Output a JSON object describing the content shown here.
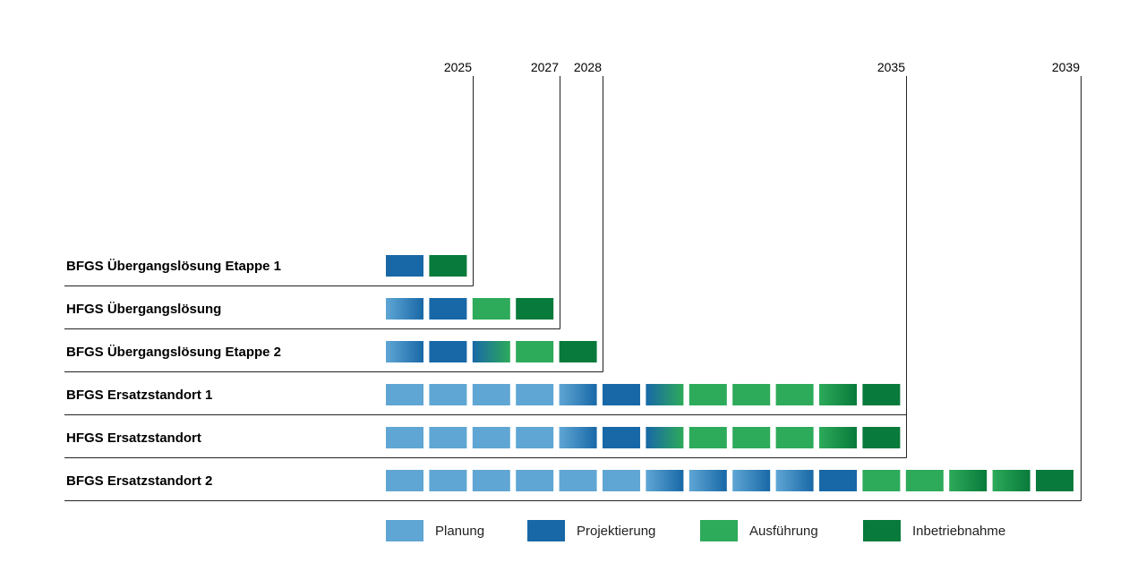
{
  "chart_data": {
    "type": "gantt",
    "colors": {
      "planung": "#5fa6d4",
      "projektierung": "#1868a7",
      "ausfuehrung": "#2daa5a",
      "inbetriebnahme": "#087a3b"
    },
    "years": [
      "2025",
      "2027",
      "2028",
      "2035",
      "2039"
    ],
    "rows": [
      {
        "label": "BFGS Übergangslösung Etappe 1",
        "end_year": "2025",
        "blocks": [
          [
            "projektierung",
            "projektierung"
          ],
          [
            "inbetriebnahme",
            "inbetriebnahme"
          ]
        ]
      },
      {
        "label": "HFGS Übergangslösung",
        "end_year": "2027",
        "blocks": [
          [
            "planung",
            "projektierung"
          ],
          [
            "projektierung",
            "projektierung"
          ],
          [
            "ausfuehrung",
            "ausfuehrung"
          ],
          [
            "inbetriebnahme",
            "inbetriebnahme"
          ]
        ]
      },
      {
        "label": "BFGS Übergangslösung Etappe 2",
        "end_year": "2028",
        "blocks": [
          [
            "planung",
            "projektierung"
          ],
          [
            "projektierung",
            "projektierung"
          ],
          [
            "projektierung",
            "ausfuehrung"
          ],
          [
            "ausfuehrung",
            "ausfuehrung"
          ],
          [
            "inbetriebnahme",
            "inbetriebnahme"
          ]
        ]
      },
      {
        "label": "BFGS Ersatzstandort 1",
        "end_year": "2035",
        "blocks": [
          [
            "planung",
            "planung"
          ],
          [
            "planung",
            "planung"
          ],
          [
            "planung",
            "planung"
          ],
          [
            "planung",
            "planung"
          ],
          [
            "planung",
            "projektierung"
          ],
          [
            "projektierung",
            "projektierung"
          ],
          [
            "projektierung",
            "ausfuehrung"
          ],
          [
            "ausfuehrung",
            "ausfuehrung"
          ],
          [
            "ausfuehrung",
            "ausfuehrung"
          ],
          [
            "ausfuehrung",
            "ausfuehrung"
          ],
          [
            "ausfuehrung",
            "inbetriebnahme"
          ],
          [
            "inbetriebnahme",
            "inbetriebnahme"
          ]
        ]
      },
      {
        "label": "HFGS Ersatzstandort",
        "end_year": "2035",
        "blocks": [
          [
            "planung",
            "planung"
          ],
          [
            "planung",
            "planung"
          ],
          [
            "planung",
            "planung"
          ],
          [
            "planung",
            "planung"
          ],
          [
            "planung",
            "projektierung"
          ],
          [
            "projektierung",
            "projektierung"
          ],
          [
            "projektierung",
            "ausfuehrung"
          ],
          [
            "ausfuehrung",
            "ausfuehrung"
          ],
          [
            "ausfuehrung",
            "ausfuehrung"
          ],
          [
            "ausfuehrung",
            "ausfuehrung"
          ],
          [
            "ausfuehrung",
            "inbetriebnahme"
          ],
          [
            "inbetriebnahme",
            "inbetriebnahme"
          ]
        ]
      },
      {
        "label": "BFGS Ersatzstandort 2",
        "end_year": "2039",
        "blocks": [
          [
            "planung",
            "planung"
          ],
          [
            "planung",
            "planung"
          ],
          [
            "planung",
            "planung"
          ],
          [
            "planung",
            "planung"
          ],
          [
            "planung",
            "planung"
          ],
          [
            "planung",
            "planung"
          ],
          [
            "planung",
            "projektierung"
          ],
          [
            "planung",
            "projektierung"
          ],
          [
            "planung",
            "projektierung"
          ],
          [
            "planung",
            "projektierung"
          ],
          [
            "projektierung",
            "projektierung"
          ],
          [
            "ausfuehrung",
            "ausfuehrung"
          ],
          [
            "ausfuehrung",
            "ausfuehrung"
          ],
          [
            "ausfuehrung",
            "inbetriebnahme"
          ],
          [
            "ausfuehrung",
            "inbetriebnahme"
          ],
          [
            "inbetriebnahme",
            "inbetriebnahme"
          ]
        ]
      }
    ],
    "legend": [
      {
        "key": "planung",
        "label": "Planung"
      },
      {
        "key": "projektierung",
        "label": "Projektierung"
      },
      {
        "key": "ausfuehrung",
        "label": "Ausführung"
      },
      {
        "key": "inbetriebnahme",
        "label": "Inbetriebnahme"
      }
    ]
  }
}
